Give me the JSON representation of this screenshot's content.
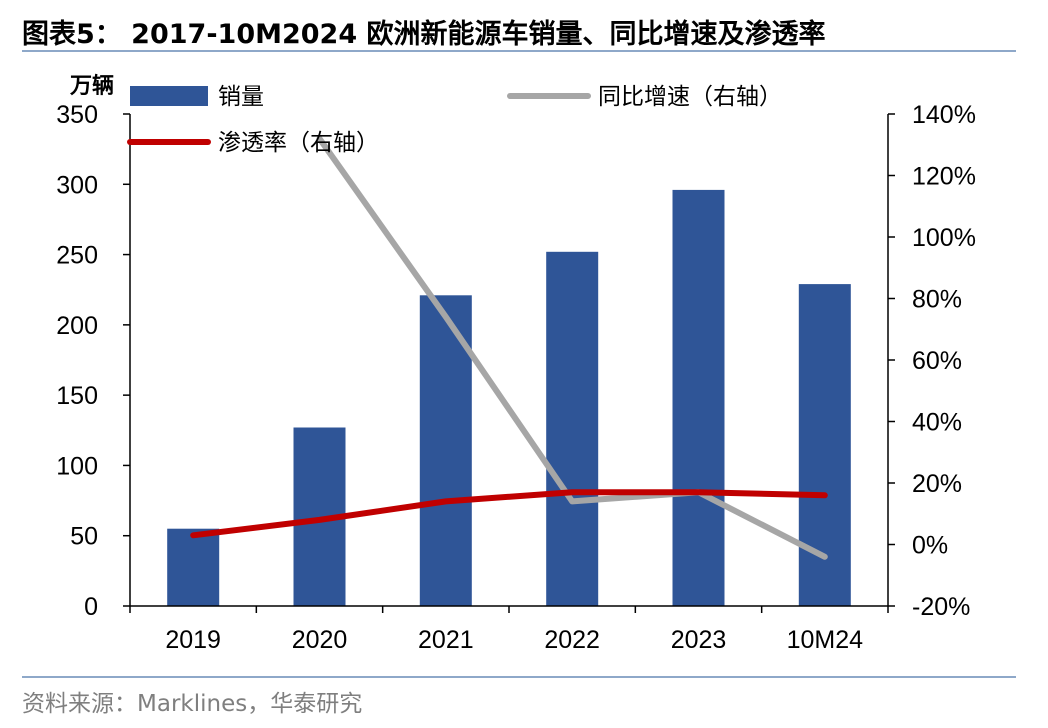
{
  "chart_data": {
    "type": "bar",
    "title": "图表5： 2017-10M2024 欧洲新能源车销量、同比增速及渗透率",
    "source": "资料来源：Marklines，华泰研究",
    "categories": [
      "2019",
      "2020",
      "2021",
      "2022",
      "2023",
      "10M24"
    ],
    "y_left": {
      "unit_label": "万辆",
      "ylim": [
        0,
        350
      ],
      "ticks": [
        "0",
        "50",
        "100",
        "150",
        "200",
        "250",
        "300",
        "350"
      ]
    },
    "y_right": {
      "ylim": [
        -20,
        140
      ],
      "ticks": [
        "-20%",
        "0%",
        "20%",
        "40%",
        "60%",
        "80%",
        "100%",
        "120%",
        "140%"
      ]
    },
    "series": [
      {
        "name": "销量",
        "kind": "bar",
        "axis": "left",
        "color": "#2f5597",
        "values": [
          55,
          127,
          221,
          252,
          296,
          229
        ]
      },
      {
        "name": "同比增速（右轴）",
        "kind": "line",
        "axis": "right",
        "color": "#a6a6a6",
        "values": [
          null,
          132,
          74,
          14,
          17,
          -4
        ]
      },
      {
        "name": "渗透率（右轴）",
        "kind": "line",
        "axis": "right",
        "color": "#c00000",
        "values": [
          3,
          8,
          14,
          17,
          17,
          16
        ]
      }
    ],
    "grid": false,
    "legend": "top-left"
  }
}
